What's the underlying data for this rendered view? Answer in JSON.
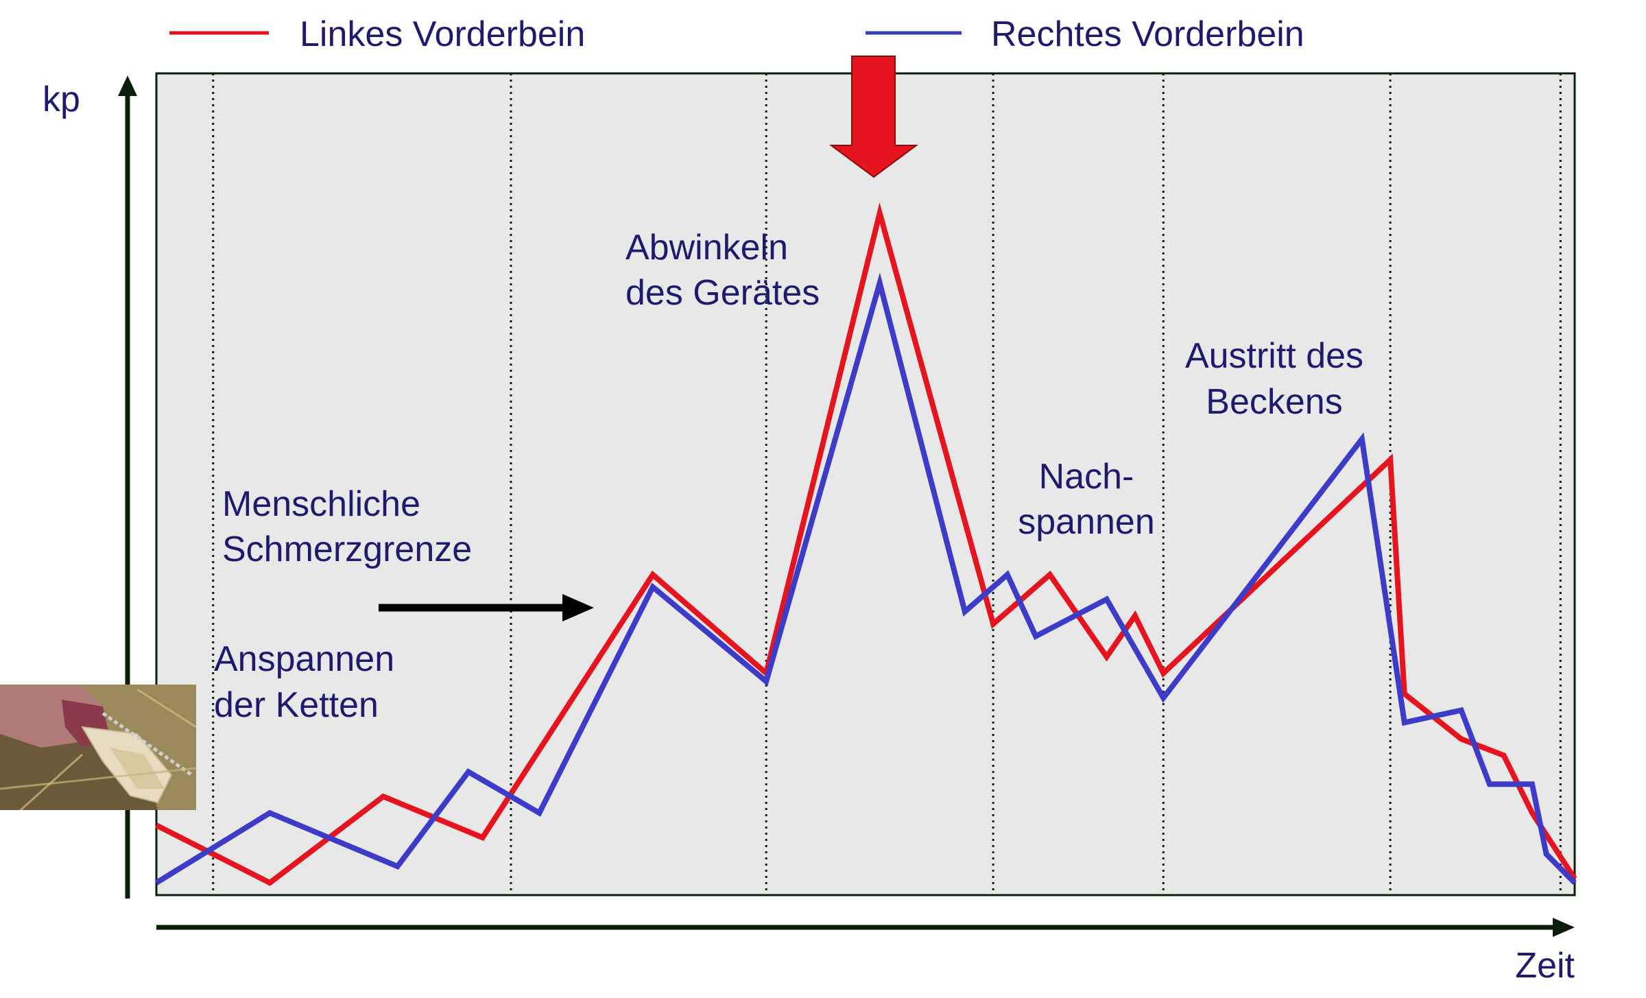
{
  "chart_data": {
    "type": "line",
    "title": "",
    "xlabel": "Zeit",
    "ylabel": "kp",
    "xlim": [
      0,
      100
    ],
    "ylim": [
      0,
      100
    ],
    "grid": "vertical-dotted",
    "legend_position": "top",
    "phase_boundaries": [
      4,
      25,
      43,
      59,
      71,
      87,
      99
    ],
    "series": [
      {
        "name": "Linkes Vorderbein",
        "color": "#e5141e",
        "x": [
          0,
          8,
          16,
          23,
          35,
          43,
          51,
          59,
          63,
          67,
          69,
          71,
          87,
          88,
          92,
          95,
          97,
          100
        ],
        "y": [
          8.5,
          1.5,
          12,
          7,
          39,
          27,
          83,
          33,
          39,
          29,
          34,
          27,
          53,
          24.5,
          19,
          17,
          10,
          2
        ]
      },
      {
        "name": "Rechtes Vorderbein",
        "color": "#3c3cc8",
        "x": [
          0,
          8,
          17,
          22,
          27,
          35,
          43,
          51,
          57,
          60,
          62,
          67,
          71,
          85,
          88,
          92,
          94,
          97,
          98,
          100
        ],
        "y": [
          1.5,
          10,
          3.5,
          15,
          10,
          37.5,
          26,
          74.5,
          34.5,
          39,
          31.5,
          36,
          24,
          55.5,
          21,
          22.5,
          13.5,
          13.5,
          5,
          1.5
        ]
      }
    ],
    "annotations": [
      {
        "lines": [
          "Anspannen",
          "der Ketten"
        ]
      },
      {
        "lines": [
          "Menschliche",
          "Schmerzgrenze"
        ]
      },
      {
        "lines": [
          "Abwinkeln",
          "des Gerätes"
        ]
      },
      {
        "lines": [
          "Nach-",
          "spannen"
        ]
      },
      {
        "lines": [
          "Austritt des",
          "Beckens"
        ]
      }
    ],
    "colors": {
      "plot_background": "#e8e8e8",
      "axis": "#0a1e0a",
      "text": "#1f1a6e",
      "arrow_red": "#e5141e",
      "arrow_black": "#000000"
    },
    "photo": "calf-hooves-in-chains-photo"
  }
}
